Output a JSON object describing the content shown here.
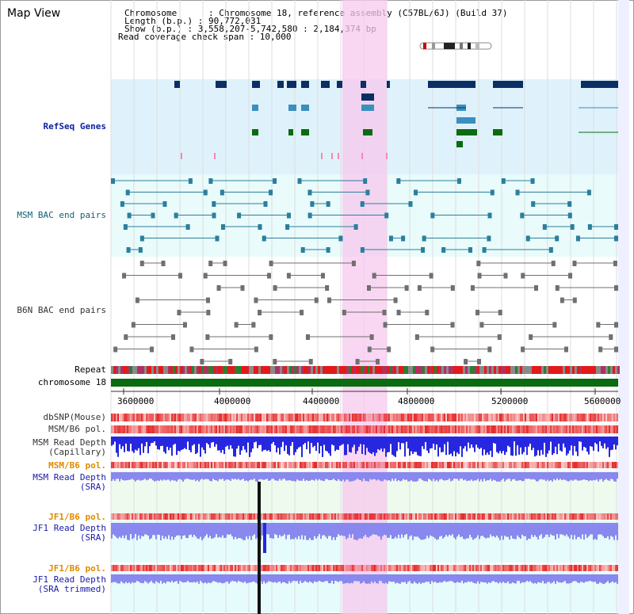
{
  "title": "Map View",
  "info": {
    "chromosome": "Chromosome      : Chromosome 18, reference assembly (C57BL/6J) (Build 37)",
    "length": "Length (b.p.) : 90,772,031",
    "show": "Show (b.p.) : 3,558,207-5,742,580 : 2,184,374 bp",
    "coverage": "Read coverage check span : 10,000"
  },
  "tracks": {
    "refseq": "RefSeq Genes",
    "msm_bac": "MSM BAC end pairs",
    "b6n_bac": "B6N BAC end pairs",
    "repeat": "Repeat",
    "chromosome": "chromosome 18",
    "dbsnp": "dbSNP(Mouse)",
    "msm_b6_pol_1": "MSM/B6 pol.",
    "msm_read_depth_cap": "MSM Read Depth\n(Capillary)",
    "msm_b6_pol_2": "MSM/B6 pol.",
    "msm_read_depth_sra": "MSM Read Depth\n(SRA)",
    "jf1_b6_pol_1": "JF1/B6 pol.",
    "jf1_read_depth_sra": "JF1 Read Depth\n(SRA)",
    "jf1_b6_pol_2": "JF1/B6 pol.",
    "jf1_read_depth_trim": "JF1 Read Depth\n(SRA trimmed)"
  },
  "axis": {
    "ticks": [
      "3600000",
      "4000000",
      "4400000",
      "4800000",
      "5200000",
      "5600000"
    ]
  },
  "colors": {
    "highlight": "#f7c8ee",
    "refseq_bg": "#dff2fb",
    "bac_bg": "#e9fbfb",
    "gene_dark": "#0b2f63",
    "gene_mid": "#3a8fbf",
    "gene_green": "#0a6b10",
    "chromosome": "#0a6b10",
    "depth_blue": "#2727e0",
    "depth_light": "#8888ee"
  }
}
